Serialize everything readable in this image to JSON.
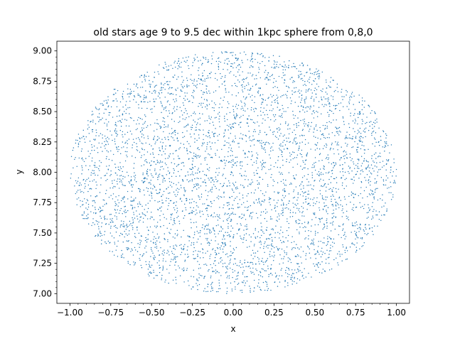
{
  "chart_data": {
    "type": "scatter",
    "title": "old stars age 9 to 9.5 dec within 1kpc sphere from 0,8,0",
    "xlabel": "x",
    "ylabel": "y",
    "xlim": [
      -1.08,
      1.08
    ],
    "ylim": [
      6.92,
      9.08
    ],
    "xticks": [
      -1.0,
      -0.75,
      -0.5,
      -0.25,
      0.0,
      0.25,
      0.5,
      0.75,
      1.0
    ],
    "xtick_labels": [
      "−1.00",
      "−0.75",
      "−0.50",
      "−0.25",
      "0.00",
      "0.25",
      "0.50",
      "0.75",
      "1.00"
    ],
    "yticks": [
      7.0,
      7.25,
      7.5,
      7.75,
      8.0,
      8.25,
      8.5,
      8.75,
      9.0
    ],
    "ytick_labels": [
      "7.00",
      "7.25",
      "7.50",
      "7.75",
      "8.00",
      "8.25",
      "8.50",
      "8.75",
      "9.00"
    ],
    "minor_ticks": true,
    "grid": false,
    "series": [
      {
        "marker": "point",
        "color": "#1f77b4",
        "distribution": "approximately uniform, projected from a sphere of radius 1.0 centred at x = 0.0, y = 8.0",
        "n_points_approx": 4500,
        "center": [
          0.0,
          8.0
        ],
        "radius": 1.0
      }
    ]
  }
}
